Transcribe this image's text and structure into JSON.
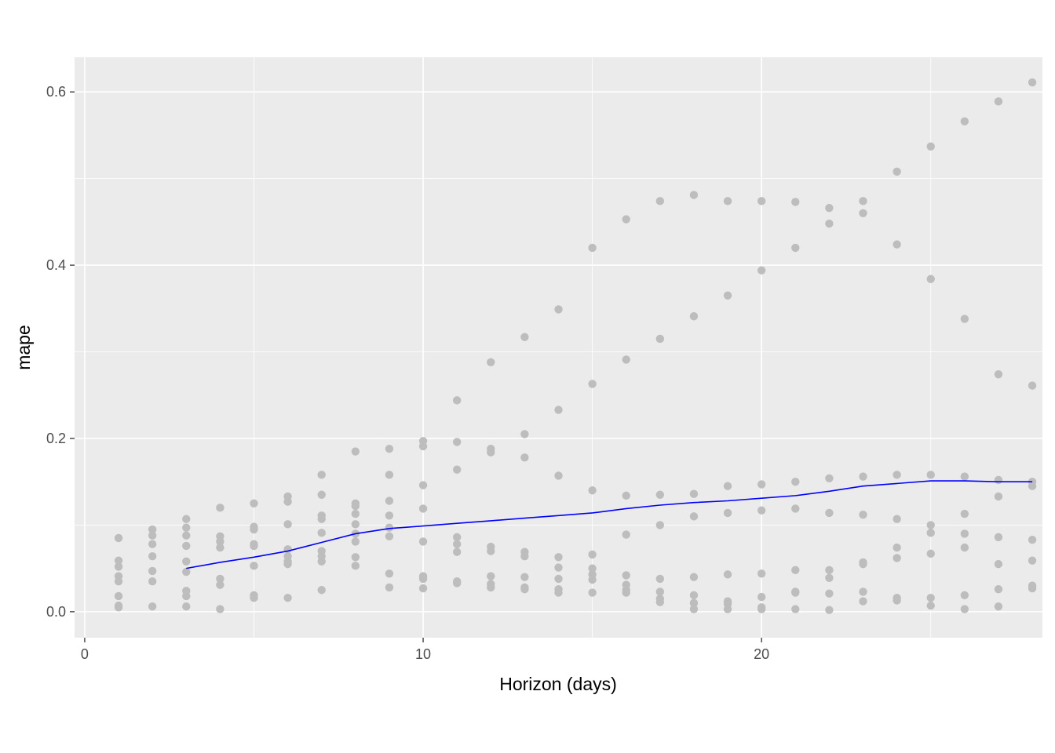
{
  "chart_data": {
    "type": "scatter",
    "xlabel": "Horizon (days)",
    "ylabel": "mape",
    "xlim": [
      -0.3,
      28.3
    ],
    "ylim": [
      -0.03,
      0.64
    ],
    "x_ticks": [
      0,
      10,
      20
    ],
    "y_ticks": [
      0.0,
      0.2,
      0.4,
      0.6
    ],
    "grid": true,
    "legend": "none",
    "colors": {
      "panel": "#ebebeb",
      "grid": "#ffffff",
      "points": "#bdbdbd",
      "line": "#0000ff"
    },
    "series": [
      {
        "type": "scatter",
        "x": [
          1,
          1,
          1,
          1,
          1,
          1,
          1,
          1,
          2,
          2,
          2,
          2,
          2,
          2,
          2,
          3,
          3,
          3,
          3,
          3,
          3,
          3,
          3,
          3,
          4,
          4,
          4,
          4,
          4,
          4,
          4,
          5,
          5,
          5,
          5,
          5,
          5,
          5,
          5,
          6,
          6,
          6,
          6,
          6,
          6,
          6,
          6,
          7,
          7,
          7,
          7,
          7,
          7,
          7,
          7,
          7,
          8,
          8,
          8,
          8,
          8,
          8,
          8,
          8,
          8,
          9,
          9,
          9,
          9,
          9,
          9,
          9,
          9,
          10,
          10,
          10,
          10,
          10,
          10,
          10,
          10,
          11,
          11,
          11,
          11,
          11,
          11,
          11,
          11,
          12,
          12,
          12,
          12,
          12,
          12,
          12,
          12,
          13,
          13,
          13,
          13,
          13,
          13,
          13,
          13,
          14,
          14,
          14,
          14,
          14,
          14,
          14,
          14,
          15,
          15,
          15,
          15,
          15,
          15,
          15,
          15,
          16,
          16,
          16,
          16,
          16,
          16,
          16,
          16,
          17,
          17,
          17,
          17,
          17,
          17,
          17,
          17,
          18,
          18,
          18,
          18,
          18,
          18,
          18,
          18,
          19,
          19,
          19,
          19,
          19,
          19,
          19,
          19,
          20,
          20,
          20,
          20,
          20,
          20,
          20,
          20,
          21,
          21,
          21,
          21,
          21,
          21,
          21,
          21,
          22,
          22,
          22,
          22,
          22,
          22,
          22,
          22,
          23,
          23,
          23,
          23,
          23,
          23,
          23,
          23,
          24,
          24,
          24,
          24,
          24,
          24,
          24,
          24,
          25,
          25,
          25,
          25,
          25,
          25,
          25,
          25,
          26,
          26,
          26,
          26,
          26,
          26,
          26,
          26,
          27,
          27,
          27,
          27,
          27,
          27,
          27,
          27,
          28,
          28,
          28,
          28,
          28,
          28,
          28,
          28
        ],
        "y": [
          0.085,
          0.059,
          0.052,
          0.041,
          0.035,
          0.018,
          0.007,
          0.005,
          0.095,
          0.088,
          0.078,
          0.064,
          0.047,
          0.035,
          0.006,
          0.107,
          0.097,
          0.088,
          0.076,
          0.058,
          0.046,
          0.024,
          0.018,
          0.006,
          0.12,
          0.087,
          0.081,
          0.074,
          0.038,
          0.031,
          0.003,
          0.125,
          0.098,
          0.095,
          0.078,
          0.076,
          0.053,
          0.019,
          0.016,
          0.133,
          0.127,
          0.101,
          0.072,
          0.064,
          0.058,
          0.055,
          0.016,
          0.158,
          0.135,
          0.111,
          0.107,
          0.091,
          0.07,
          0.064,
          0.058,
          0.025,
          0.185,
          0.125,
          0.122,
          0.113,
          0.101,
          0.09,
          0.081,
          0.063,
          0.053,
          0.188,
          0.158,
          0.128,
          0.111,
          0.097,
          0.087,
          0.044,
          0.028,
          0.197,
          0.191,
          0.146,
          0.119,
          0.081,
          0.041,
          0.038,
          0.027,
          0.244,
          0.196,
          0.164,
          0.086,
          0.078,
          0.069,
          0.035,
          0.033,
          0.288,
          0.188,
          0.184,
          0.075,
          0.07,
          0.041,
          0.032,
          0.028,
          0.317,
          0.205,
          0.178,
          0.069,
          0.064,
          0.04,
          0.028,
          0.026,
          0.349,
          0.233,
          0.157,
          0.063,
          0.051,
          0.038,
          0.026,
          0.022,
          0.42,
          0.263,
          0.14,
          0.066,
          0.05,
          0.043,
          0.037,
          0.022,
          0.453,
          0.291,
          0.134,
          0.089,
          0.042,
          0.031,
          0.025,
          0.022,
          0.474,
          0.315,
          0.135,
          0.1,
          0.038,
          0.023,
          0.015,
          0.011,
          0.481,
          0.341,
          0.136,
          0.11,
          0.04,
          0.019,
          0.01,
          0.003,
          0.474,
          0.365,
          0.145,
          0.114,
          0.043,
          0.012,
          0.009,
          0.003,
          0.474,
          0.394,
          0.147,
          0.117,
          0.044,
          0.017,
          0.005,
          0.003,
          0.473,
          0.42,
          0.15,
          0.119,
          0.048,
          0.023,
          0.022,
          0.003,
          0.466,
          0.448,
          0.154,
          0.114,
          0.048,
          0.039,
          0.021,
          0.002,
          0.474,
          0.46,
          0.156,
          0.112,
          0.057,
          0.055,
          0.023,
          0.012,
          0.508,
          0.424,
          0.158,
          0.107,
          0.074,
          0.062,
          0.016,
          0.013,
          0.537,
          0.384,
          0.158,
          0.1,
          0.091,
          0.067,
          0.016,
          0.007,
          0.566,
          0.338,
          0.156,
          0.113,
          0.09,
          0.074,
          0.019,
          0.003,
          0.589,
          0.274,
          0.152,
          0.133,
          0.086,
          0.055,
          0.026,
          0.006,
          0.611,
          0.261,
          0.15,
          0.145,
          0.083,
          0.059,
          0.03,
          0.027
        ]
      },
      {
        "type": "line",
        "x": [
          3,
          4,
          5,
          6,
          7,
          8,
          9,
          10,
          11,
          12,
          13,
          14,
          15,
          16,
          17,
          18,
          19,
          20,
          21,
          22,
          23,
          24,
          25,
          26,
          27,
          28
        ],
        "y": [
          0.05,
          0.057,
          0.063,
          0.07,
          0.08,
          0.09,
          0.096,
          0.099,
          0.102,
          0.105,
          0.108,
          0.111,
          0.114,
          0.119,
          0.123,
          0.126,
          0.128,
          0.131,
          0.134,
          0.139,
          0.145,
          0.148,
          0.151,
          0.151,
          0.15,
          0.15
        ]
      }
    ]
  }
}
